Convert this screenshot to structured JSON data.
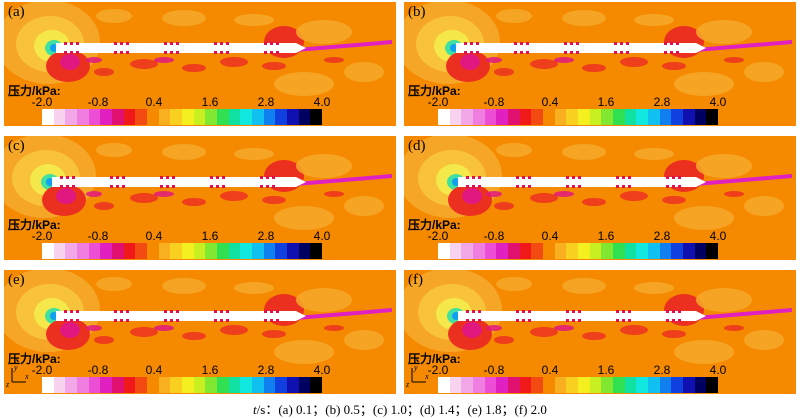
{
  "panels": [
    {
      "label": "(a)"
    },
    {
      "label": "(b)"
    },
    {
      "label": "(c)"
    },
    {
      "label": "(d)"
    },
    {
      "label": "(e)"
    },
    {
      "label": "(f)"
    }
  ],
  "colorbar": {
    "title": "压力/kPa:",
    "ticks": [
      "-2.0",
      "-0.8",
      "0.4",
      "1.6",
      "2.8",
      "4.0"
    ],
    "colors": [
      "#ffffff",
      "#f7d3f0",
      "#f2a8e8",
      "#f07de0",
      "#ec4fd6",
      "#e020c0",
      "#e01070",
      "#f01818",
      "#f24a10",
      "#f58a00",
      "#f8b020",
      "#fad020",
      "#f4f020",
      "#c8f020",
      "#80e830",
      "#30e050",
      "#10e0a0",
      "#10e8e0",
      "#10c0f0",
      "#1080f0",
      "#1040e0",
      "#1010b0",
      "#000060",
      "#000000"
    ]
  },
  "axes": {
    "y": "y",
    "x": "x",
    "z": "z"
  },
  "caption": {
    "prefix": "t",
    "text": "/s：(a) 0.1；(b) 0.5；(c) 1.0；(d) 1.4；(e) 1.8；(f) 2.0"
  }
}
